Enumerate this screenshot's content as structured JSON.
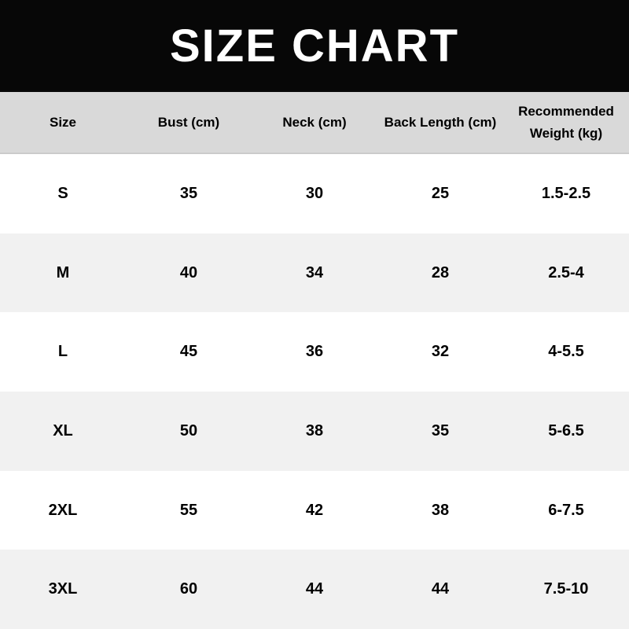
{
  "chart_data": {
    "type": "table",
    "title": "SIZE CHART",
    "columns": [
      "Size",
      "Bust (cm)",
      "Neck (cm)",
      "Back Length (cm)",
      "Recommended Weight (kg)"
    ],
    "rows": [
      [
        "S",
        "35",
        "30",
        "25",
        "1.5-2.5"
      ],
      [
        "M",
        "40",
        "34",
        "28",
        "2.5-4"
      ],
      [
        "L",
        "45",
        "36",
        "32",
        "4-5.5"
      ],
      [
        "XL",
        "50",
        "38",
        "35",
        "5-6.5"
      ],
      [
        "2XL",
        "55",
        "42",
        "38",
        "6-7.5"
      ],
      [
        "3XL",
        "60",
        "44",
        "44",
        "7.5-10"
      ]
    ],
    "layout": {
      "grid": "off",
      "row_striping": "alternating"
    }
  },
  "colors": {
    "banner_bg": "#070707",
    "title_text": "#ffffff",
    "header_bg": "#d9d9d9",
    "row_bg": "#ffffff",
    "row_alt_bg": "#f1f1f1",
    "body_text": "#000000"
  }
}
